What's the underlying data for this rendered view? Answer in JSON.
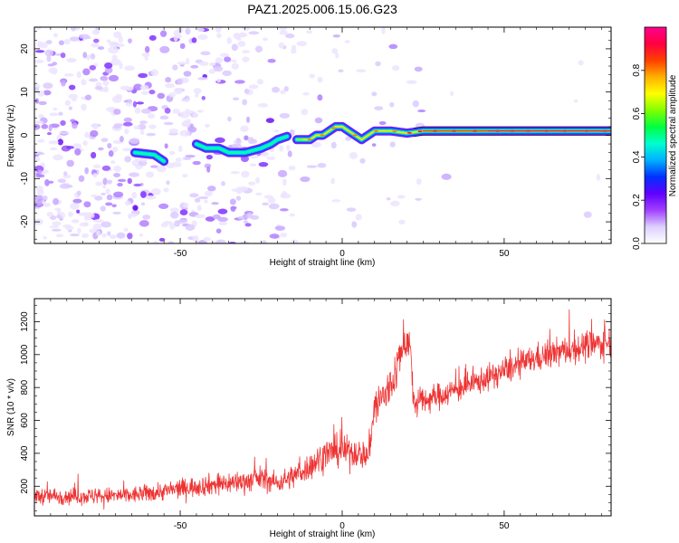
{
  "title": "PAZ1.2025.006.15.06.G23",
  "chart_data": [
    {
      "type": "heatmap",
      "xlabel": "Height of straight line (km)",
      "ylabel": "Frequency (Hz)",
      "xlim": [
        -95,
        83
      ],
      "ylim": [
        -25,
        25
      ],
      "xticks": [
        -50,
        0,
        50
      ],
      "yticks": [
        -20,
        -10,
        0,
        10,
        20
      ],
      "grid": false,
      "colorbar": {
        "label": "Normalized spectral amplitude",
        "range": [
          0,
          1
        ],
        "ticks": [
          0.0,
          0.2,
          0.4,
          0.6,
          0.8
        ],
        "colors": [
          "#ffffff",
          "#dcd0ff",
          "#a040ff",
          "#6000ff",
          "#0030ff",
          "#00b0ff",
          "#00ffd0",
          "#00ff40",
          "#80ff00",
          "#ffff00",
          "#ffb000",
          "#ff4000",
          "#ff0040",
          "#ff0090"
        ]
      },
      "ridge": {
        "x": [
          -64,
          -58,
          -55,
          -50,
          -45,
          -42,
          -38,
          -35,
          -30,
          -25,
          -22,
          -20,
          -18,
          -16,
          -14,
          -12,
          -10,
          -8,
          -6,
          -4,
          -2,
          0,
          2,
          4,
          6,
          8,
          10,
          15,
          20,
          25,
          30,
          40,
          50,
          60,
          70,
          83
        ],
        "y": [
          -4,
          -4.5,
          -6,
          -5,
          -2,
          -3,
          -3,
          -4,
          -4,
          -3,
          -2,
          -1,
          -0.5,
          0,
          -1,
          -1,
          -1,
          0,
          0,
          1,
          2,
          2,
          1,
          0,
          -1,
          0,
          1,
          1,
          0.5,
          1,
          1,
          1,
          1,
          1,
          1,
          1
        ]
      }
    },
    {
      "type": "line",
      "xlabel": "Height of straight line (km)",
      "ylabel": "SNR (10 * v/v)",
      "xlim": [
        -95,
        83
      ],
      "ylim": [
        20,
        1340
      ],
      "xticks": [
        -50,
        0,
        50
      ],
      "yticks": [
        200,
        400,
        600,
        800,
        1000,
        1200
      ],
      "grid": false,
      "series_color": "#ee3333",
      "envelope": {
        "x": [
          -95,
          -85,
          -75,
          -65,
          -55,
          -45,
          -35,
          -30,
          -25,
          -20,
          -15,
          -10,
          -5,
          0,
          5,
          8,
          10,
          15,
          18,
          20,
          21,
          22,
          30,
          40,
          50,
          60,
          70,
          83
        ],
        "mean": [
          140,
          140,
          140,
          145,
          170,
          200,
          220,
          230,
          250,
          220,
          260,
          320,
          400,
          420,
          400,
          380,
          680,
          800,
          1000,
          1100,
          1050,
          700,
          750,
          820,
          900,
          980,
          1030,
          1080
        ],
        "noise": [
          90,
          90,
          90,
          90,
          100,
          110,
          120,
          120,
          130,
          110,
          130,
          150,
          170,
          170,
          160,
          150,
          250,
          250,
          220,
          200,
          200,
          150,
          140,
          140,
          140,
          150,
          160,
          170
        ]
      }
    }
  ]
}
